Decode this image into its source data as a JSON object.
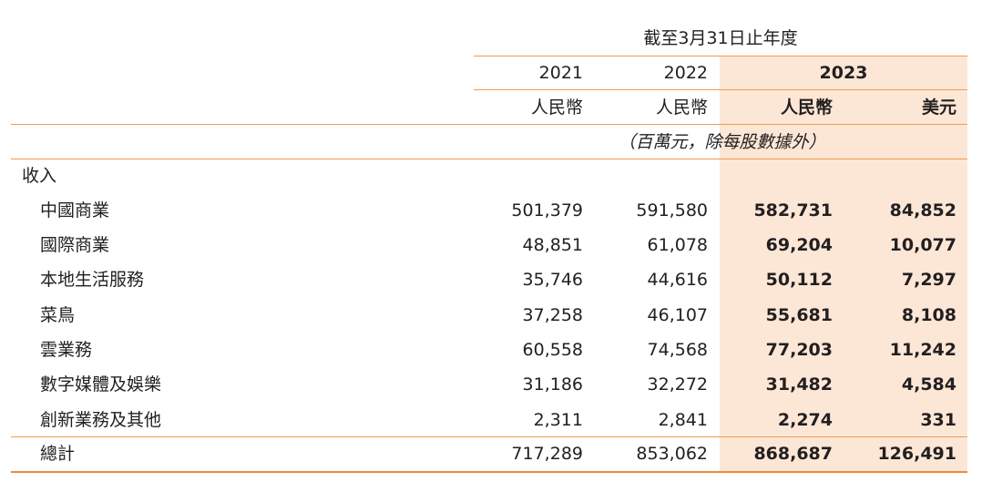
{
  "header": {
    "period": "截至3月31日止年度",
    "years": [
      "2021",
      "2022",
      "2023"
    ],
    "currencies": [
      "人民幣",
      "人民幣",
      "人民幣",
      "美元"
    ],
    "unit_note": "（百萬元，除每股數據外）"
  },
  "section_label": "收入",
  "rows": [
    {
      "label": "中國商業",
      "v2021": "501,379",
      "v2022": "591,580",
      "v2023_rmb": "582,731",
      "v2023_usd": "84,852"
    },
    {
      "label": "國際商業",
      "v2021": "48,851",
      "v2022": "61,078",
      "v2023_rmb": "69,204",
      "v2023_usd": "10,077"
    },
    {
      "label": "本地生活服務",
      "v2021": "35,746",
      "v2022": "44,616",
      "v2023_rmb": "50,112",
      "v2023_usd": "7,297"
    },
    {
      "label": "菜鳥",
      "v2021": "37,258",
      "v2022": "46,107",
      "v2023_rmb": "55,681",
      "v2023_usd": "8,108"
    },
    {
      "label": "雲業務",
      "v2021": "60,558",
      "v2022": "74,568",
      "v2023_rmb": "77,203",
      "v2023_usd": "11,242"
    },
    {
      "label": "數字媒體及娛樂",
      "v2021": "31,186",
      "v2022": "32,272",
      "v2023_rmb": "31,482",
      "v2023_usd": "4,584"
    },
    {
      "label": "創新業務及其他",
      "v2021": "2,311",
      "v2022": "2,841",
      "v2023_rmb": "2,274",
      "v2023_usd": "331"
    }
  ],
  "total": {
    "label": "總計",
    "v2021": "717,289",
    "v2022": "853,062",
    "v2023_rmb": "868,687",
    "v2023_usd": "126,491"
  },
  "colors": {
    "accent_line": "#f39a4e",
    "highlight_bg": "#fce7d7",
    "text": "#231f20"
  }
}
